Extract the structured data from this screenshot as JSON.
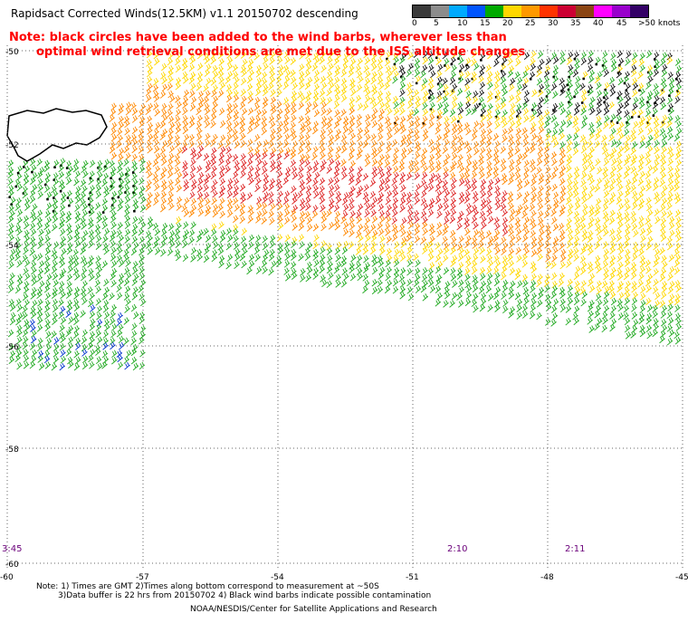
{
  "title": "Rapidsact Corrected Winds(12.5KM) v1.1 20150702 descending",
  "note_line1": "Note: black circles have been added to the wind barbs, wherever less than",
  "note_line2": "optimal wind retrieval conditions are met due to the ISS altitude changes",
  "speed_scale": {
    "labels": [
      "0",
      "5",
      "10",
      "15",
      "20",
      "25",
      "30",
      "35",
      "40",
      "45",
      ">50 knots"
    ],
    "colors": [
      "#3a3a3a",
      "#8c8c8c",
      "#00aaff",
      "#0055ff",
      "#00aa00",
      "#ffd700",
      "#ff9900",
      "#ff3300",
      "#cc0033",
      "#8b4513",
      "#ff00ff",
      "#9900cc",
      "#330066"
    ]
  },
  "map": {
    "lat_labels": [
      "-50",
      "-52",
      "-54",
      "-56",
      "-58",
      "-60"
    ],
    "lon_labels": [
      "-60",
      "-57",
      "-54",
      "-51",
      "-48",
      "-45"
    ],
    "time_labels": [
      "3:45",
      "2:10",
      "2:11"
    ]
  },
  "footer": {
    "line1": "Note: 1) Times are GMT 2)Times along bottom correspond to measurement at ~50S",
    "line2": "3)Data buffer is 22 hrs from 20150702 4) Black wind barbs indicate possible contamination",
    "line3": "NOAA/NESDIS/Center for Satellite Applications and Research"
  },
  "colors": {
    "green": "#22aa22",
    "yellow": "#ffd700",
    "orange": "#ff8800",
    "red": "#dd2222",
    "blue": "#0033cc",
    "black": "#111111"
  }
}
